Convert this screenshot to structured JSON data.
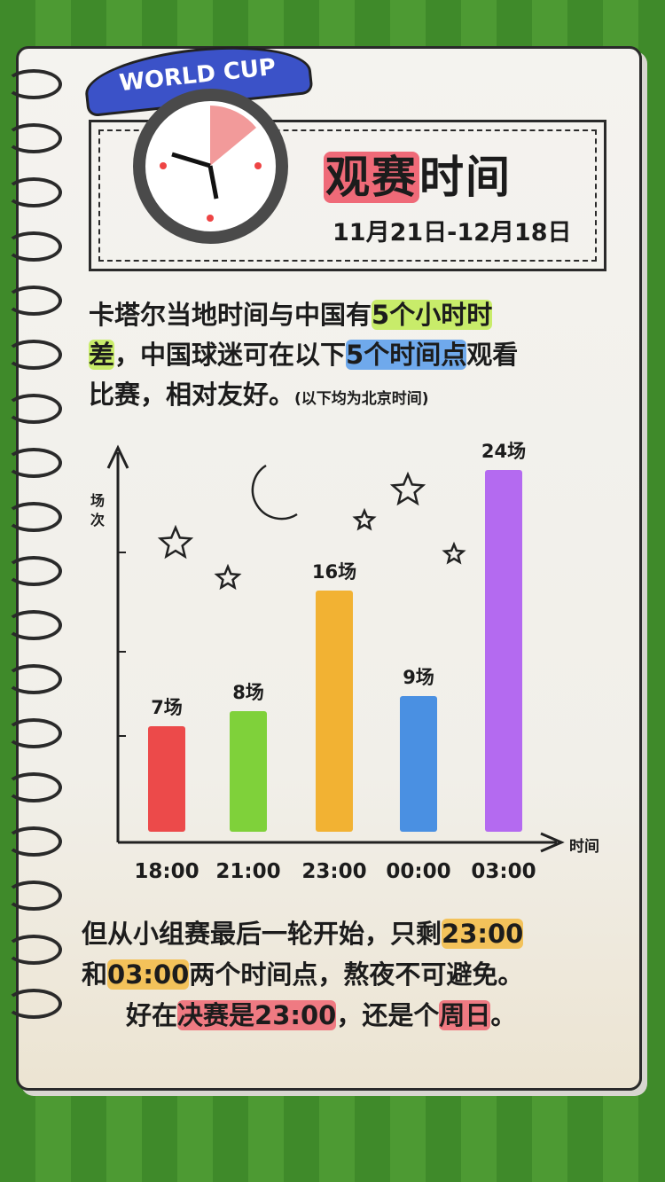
{
  "banner": "WORLD CUP",
  "header": {
    "title_hl": "观赛",
    "title_rest": "时间",
    "dates": "11月21日-12月18日"
  },
  "intro": {
    "l1a": "卡塔尔当地时间与中国有",
    "l1b": "5个小时时",
    "l2a": "差",
    "l2b": "，中国球迷可在以下",
    "l2c": "5个时间点",
    "l2d": "观看",
    "l3a": "比赛，相对友好。",
    "l3b": "(以下均为北京时间)"
  },
  "outro": {
    "l1a": "但从小组赛最后一轮开始，只剩",
    "l1b": "23:00",
    "l2a": "和",
    "l2b": "03:00",
    "l2c": "两个时间点，熬夜不可避免。",
    "l3a": "好在",
    "l3b": "决赛是23:00",
    "l3c": "，还是个",
    "l3d": "周日",
    "l3e": "。"
  },
  "chart_data": {
    "type": "bar",
    "xlabel": "时间",
    "ylabel": "场次",
    "categories": [
      "18:00",
      "21:00",
      "23:00",
      "00:00",
      "03:00"
    ],
    "values": [
      7,
      8,
      16,
      9,
      24
    ],
    "data_labels": [
      "7场",
      "8场",
      "16场",
      "9场",
      "24场"
    ],
    "colors": [
      "#ec4a4a",
      "#7fd13a",
      "#f2b233",
      "#4a90e2",
      "#b46af0"
    ],
    "ylim": [
      0,
      26
    ],
    "grid": false
  }
}
